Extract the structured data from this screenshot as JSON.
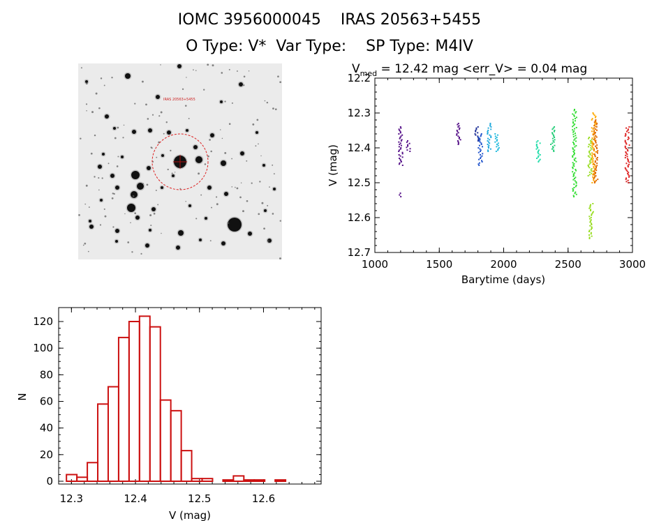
{
  "header": {
    "line1": "IOMC 3956000045    IRAS 20563+5455",
    "line2": "O Type: V*  Var Type:    SP Type: M4IV"
  },
  "stamp": {
    "target_label": "IRAS 20563+5455"
  },
  "colors": {
    "hist": "#cc1111",
    "circle": "#dd2222"
  },
  "chart_data": [
    {
      "type": "scatter",
      "title_parts": {
        "v": "V",
        "sub": "med",
        "rest": " = 12.42 mag <err_V> = 0.04 mag"
      },
      "xlabel": "Barytime (days)",
      "ylabel": "V (mag)",
      "xlim": [
        1000,
        3000
      ],
      "ylim": [
        12.7,
        12.2
      ],
      "y_inverted": true,
      "xticks": [
        1000,
        1500,
        2000,
        2500,
        3000
      ],
      "yticks": [
        12.2,
        12.3,
        12.4,
        12.5,
        12.6,
        12.7
      ],
      "clusters": [
        {
          "x": 1200,
          "y_range": [
            12.34,
            12.45
          ],
          "color": "#551188"
        },
        {
          "x": 1200,
          "y_range": [
            12.53,
            12.54
          ],
          "color": "#551188"
        },
        {
          "x": 1260,
          "y_range": [
            12.38,
            12.41
          ],
          "color": "#551188"
        },
        {
          "x": 1650,
          "y_range": [
            12.33,
            12.39
          ],
          "color": "#551188"
        },
        {
          "x": 1790,
          "y_range": [
            12.34,
            12.38
          ],
          "color": "#223399"
        },
        {
          "x": 1820,
          "y_range": [
            12.36,
            12.45
          ],
          "color": "#2255cc"
        },
        {
          "x": 1890,
          "y_range": [
            12.33,
            12.41
          ],
          "color": "#22aadd"
        },
        {
          "x": 1950,
          "y_range": [
            12.36,
            12.41
          ],
          "color": "#22bbdd"
        },
        {
          "x": 2270,
          "y_range": [
            12.38,
            12.44
          ],
          "color": "#22ddaa"
        },
        {
          "x": 2380,
          "y_range": [
            12.34,
            12.41
          ],
          "color": "#22cc77"
        },
        {
          "x": 2550,
          "y_range": [
            12.29,
            12.54
          ],
          "color": "#33dd33"
        },
        {
          "x": 2670,
          "y_range": [
            12.37,
            12.48
          ],
          "color": "#99dd22"
        },
        {
          "x": 2680,
          "y_range": [
            12.56,
            12.66
          ],
          "color": "#99dd22"
        },
        {
          "x": 2700,
          "y_range": [
            12.3,
            12.5
          ],
          "color": "#ffaa00"
        },
        {
          "x": 2715,
          "y_range": [
            12.32,
            12.5
          ],
          "color": "#dd6600"
        },
        {
          "x": 2960,
          "y_range": [
            12.34,
            12.5
          ],
          "color": "#dd2222"
        }
      ]
    },
    {
      "type": "bar",
      "subtype": "histogram",
      "xlabel": "V (mag)",
      "ylabel": "N",
      "xlim": [
        12.28,
        12.69
      ],
      "ylim": [
        0,
        130
      ],
      "xticks": [
        12.3,
        12.4,
        12.5,
        12.6
      ],
      "yticks": [
        0,
        20,
        40,
        60,
        80,
        100,
        120
      ],
      "bin_width": 0.0163,
      "bin_start": 12.2922,
      "values": [
        5,
        3,
        14,
        58,
        71,
        108,
        120,
        124,
        116,
        61,
        53,
        23,
        2,
        2,
        0,
        1,
        4,
        1,
        1,
        0,
        1
      ]
    }
  ]
}
